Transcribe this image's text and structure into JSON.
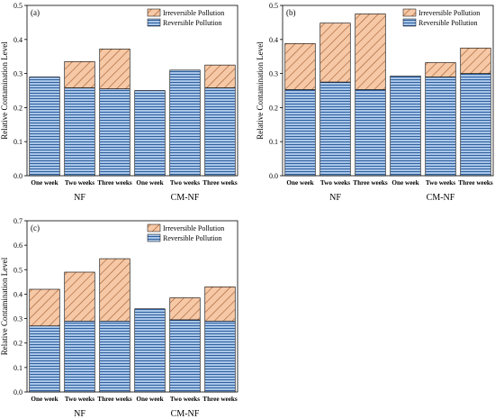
{
  "legend": {
    "irreversible_label": "Irreversible Pollution",
    "reversible_label": "Reversible Pollution"
  },
  "colors": {
    "reversible_fill": "#a9c6e8",
    "reversible_line": "#2f5f9e",
    "irreversible_fill": "#f6c8a6",
    "irreversible_line": "#a05a2c",
    "axis": "#000000"
  },
  "chart_data": [
    {
      "type": "bar",
      "stacked": true,
      "panel_label": "(a)",
      "ylabel": "Relative Contamination Level",
      "ylim": [
        0,
        0.5
      ],
      "yticks": [
        "0.0",
        "0.1",
        "0.2",
        "0.3",
        "0.4",
        "0.5"
      ],
      "categories": [
        "One week",
        "Two weeks",
        "Three weeks",
        "One week",
        "Two weeks",
        "Three weeks"
      ],
      "groups": [
        "NF",
        "CM-NF"
      ],
      "legend_position": "top-right",
      "series": [
        {
          "name": "Reversible Pollution",
          "values": [
            0.29,
            0.258,
            0.255,
            0.25,
            0.31,
            0.258
          ]
        },
        {
          "name": "Irreversible Pollution",
          "values": [
            0.0,
            0.077,
            0.117,
            0.0,
            0.0,
            0.067
          ]
        }
      ]
    },
    {
      "type": "bar",
      "stacked": true,
      "panel_label": "(b)",
      "ylabel": "Relative Contamination Level",
      "ylim": [
        0,
        0.5
      ],
      "yticks": [
        "0.0",
        "0.1",
        "0.2",
        "0.3",
        "0.4",
        "0.5"
      ],
      "categories": [
        "One week",
        "Two weeks",
        "Three weeks",
        "One week",
        "Two weeks",
        "Three weeks"
      ],
      "groups": [
        "NF",
        "CM-NF"
      ],
      "legend_position": "top-right",
      "series": [
        {
          "name": "Reversible Pollution",
          "values": [
            0.253,
            0.275,
            0.253,
            0.293,
            0.29,
            0.3
          ]
        },
        {
          "name": "Irreversible Pollution",
          "values": [
            0.135,
            0.173,
            0.222,
            0.0,
            0.042,
            0.075
          ]
        }
      ]
    },
    {
      "type": "bar",
      "stacked": true,
      "panel_label": "(c)",
      "ylabel": "Relative Contamination Level",
      "ylim": [
        0,
        0.7
      ],
      "yticks": [
        "0.0",
        "0.1",
        "0.2",
        "0.3",
        "0.4",
        "0.5",
        "0.6",
        "0.7"
      ],
      "categories": [
        "One week",
        "Two weeks",
        "Three weeks",
        "One week",
        "Two weeks",
        "Three weeks"
      ],
      "groups": [
        "NF",
        "CM-NF"
      ],
      "legend_position": "top-right",
      "series": [
        {
          "name": "Reversible Pollution",
          "values": [
            0.27,
            0.29,
            0.29,
            0.34,
            0.295,
            0.29
          ]
        },
        {
          "name": "Irreversible Pollution",
          "values": [
            0.15,
            0.2,
            0.255,
            0.0,
            0.09,
            0.14
          ]
        }
      ]
    }
  ]
}
